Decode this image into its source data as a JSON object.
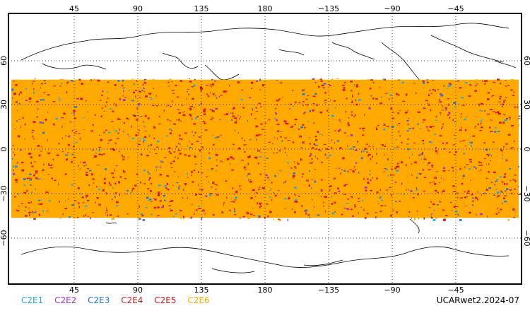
{
  "map": {
    "top_lon_ticks": [
      "45",
      "90",
      "135",
      "180",
      "−135",
      "−90",
      "−45"
    ],
    "bottom_lon_ticks": [
      "45",
      "90",
      "135",
      "180",
      "−135",
      "−90",
      "−45"
    ],
    "left_lat_ticks": [
      "60",
      "30",
      "0",
      "−30",
      "−60"
    ],
    "right_lat_ticks": [
      "60",
      "30",
      "0",
      "−30",
      "−60"
    ],
    "coverage_lat_range": [
      -45,
      45
    ],
    "lon_range": [
      0,
      360
    ],
    "lat_range": [
      -90,
      90
    ]
  },
  "legend": {
    "items": [
      {
        "label": "C2E1",
        "color": "#22aadd"
      },
      {
        "label": "C2E2",
        "color": "#aa33cc"
      },
      {
        "label": "C2E3",
        "color": "#2277dd"
      },
      {
        "label": "C2E4",
        "color": "#cc2222"
      },
      {
        "label": "C2E5",
        "color": "#dd1111"
      },
      {
        "label": "C2E6",
        "color": "#ffaa00"
      }
    ]
  },
  "footer": {
    "label": "UCARwet2.2024-07"
  },
  "colors": {
    "dominant": "#ffaa00",
    "secondary": "#dd1111",
    "accent_blue": "#2277dd"
  }
}
